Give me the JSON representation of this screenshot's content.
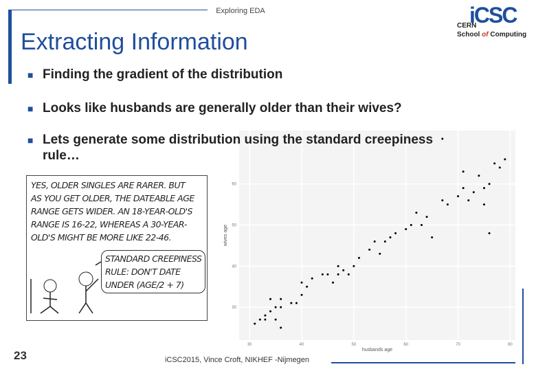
{
  "slide": {
    "header": "Exploring EDA",
    "title": "Extracting Information",
    "logo": {
      "mark": "iCSC",
      "org": "CERN",
      "school": "School",
      "of": "of",
      "computing": "Computing"
    },
    "bullets": [
      "Finding the gradient of the distribution",
      "Looks like husbands are generally older than their wives?",
      "Lets generate some distribution using the standard creepiness rule…"
    ],
    "comic": {
      "lines": [
        "YES, OLDER SINGLES ARE RARER. BUT",
        "AS YOU GET OLDER, THE DATEABLE AGE",
        "RANGE GETS WIDER. AN 18-YEAR-OLD'S",
        "RANGE IS 16-22, WHEREAS A 30-YEAR-",
        "OLD'S MIGHT BE MORE LIKE 22-46."
      ],
      "bubble": [
        "STANDARD CREEPINESS",
        "RULE: DON'T DATE",
        "UNDER (AGE/2 + 7)"
      ]
    },
    "page_number": "23",
    "footer": "iCSC2015, Vince Croft, NIKHEF -Nijmegen"
  },
  "chart_data": {
    "type": "scatter",
    "x_label": "husbands age",
    "y_label": "wives age",
    "x": [
      31,
      32,
      33,
      33,
      34,
      35,
      34,
      35,
      36,
      36,
      36,
      38,
      39,
      40,
      40,
      41,
      42,
      44,
      45,
      46,
      47,
      47,
      48,
      49,
      50,
      51,
      53,
      54,
      55,
      56,
      57,
      58,
      60,
      61,
      62,
      63,
      64,
      65,
      67,
      68,
      70,
      71,
      72,
      73,
      74,
      75,
      75,
      76,
      77,
      78,
      79,
      67,
      71,
      76
    ],
    "values": [
      26,
      27,
      28,
      27,
      29,
      30,
      32,
      27,
      30,
      32,
      25,
      31,
      31,
      33,
      36,
      35,
      37,
      38,
      38,
      36,
      40,
      38,
      39,
      38,
      40,
      42,
      44,
      46,
      43,
      46,
      47,
      48,
      49,
      50,
      53,
      50,
      52,
      47,
      56,
      55,
      57,
      59,
      56,
      58,
      62,
      55,
      59,
      60,
      65,
      64,
      66,
      71,
      63,
      48
    ],
    "color": "#000000",
    "xlim": [
      28,
      81
    ],
    "ylim": [
      22,
      73
    ],
    "xticks": [
      30,
      40,
      50,
      60,
      70,
      80
    ],
    "yticks": [
      30,
      40,
      50,
      60
    ],
    "grid": true
  }
}
